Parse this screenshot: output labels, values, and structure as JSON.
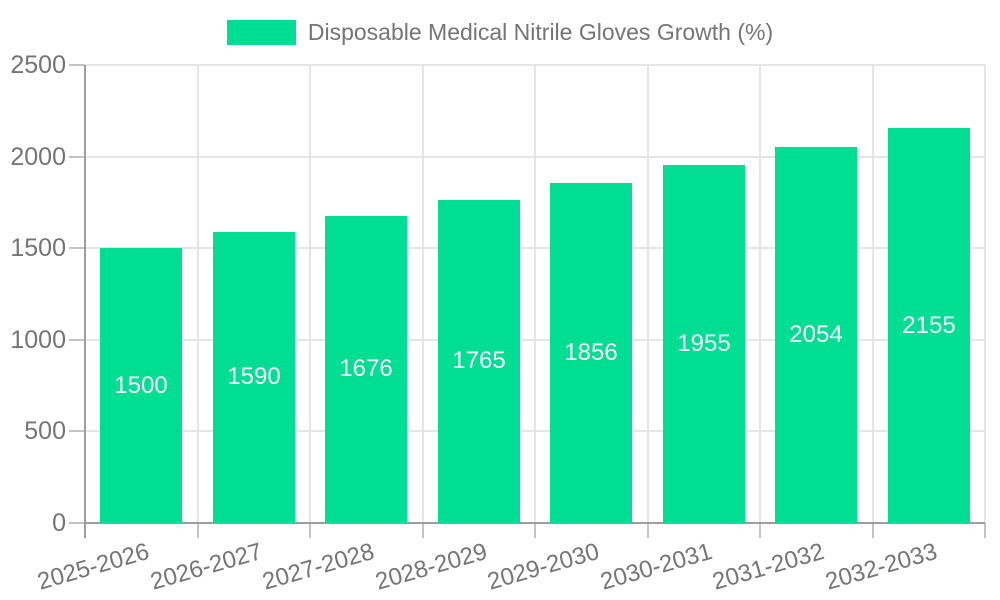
{
  "chart_data": {
    "type": "bar",
    "title": "Disposable Medical Nitrile Gloves Growth (%)",
    "legend": [
      "Disposable Medical Nitrile Gloves Growth (%)"
    ],
    "legend_position": "top",
    "categories": [
      "2025-2026",
      "2026-2027",
      "2027-2028",
      "2028-2029",
      "2029-2030",
      "2030-2031",
      "2031-2032",
      "2032-2033"
    ],
    "values": [
      1500,
      1590,
      1676,
      1765,
      1856,
      1955,
      2054,
      2155
    ],
    "xlabel": "",
    "ylabel": "",
    "ylim": [
      0,
      2500
    ],
    "y_ticks": [
      0,
      500,
      1000,
      1500,
      2000,
      2500
    ],
    "grid": true,
    "x_label_rotation_deg": -16,
    "colors": {
      "bar": "#00DE94",
      "grid": "#e6e6e6",
      "axis": "#9e9e9e",
      "tick": "#c4c4c4",
      "text": "#757575",
      "bar_value_text": "#ffffff",
      "background": "#ffffff"
    }
  }
}
